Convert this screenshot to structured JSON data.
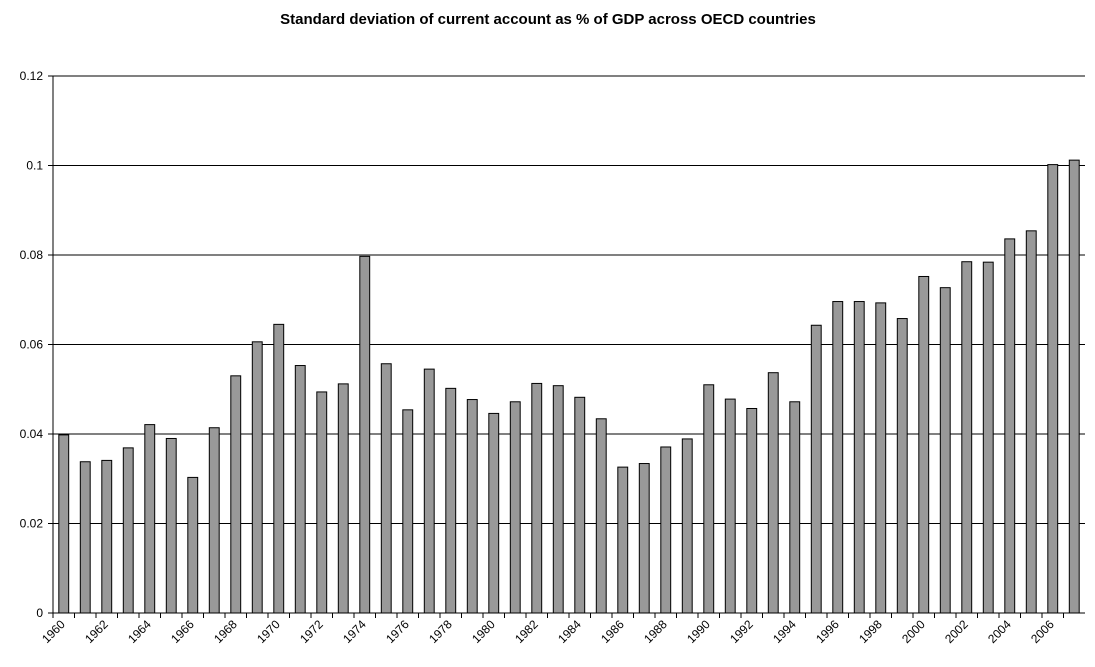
{
  "chart_data": {
    "type": "bar",
    "title": "Standard deviation of current account as % of GDP across OECD countries",
    "categories": [
      "1960",
      null,
      "1962",
      null,
      "1964",
      null,
      "1966",
      null,
      "1968",
      null,
      "1970",
      null,
      "1972",
      null,
      "1974",
      null,
      "1976",
      null,
      "1978",
      null,
      "1980",
      null,
      "1982",
      null,
      "1984",
      null,
      "1986",
      null,
      "1988",
      null,
      "1990",
      null,
      "1992",
      null,
      "1994",
      null,
      "1996",
      null,
      "1998",
      null,
      "2000",
      null,
      "2002",
      null,
      "2004",
      null,
      "2006",
      null
    ],
    "values": [
      0.0398,
      0.0338,
      0.0341,
      0.0369,
      0.0421,
      0.039,
      0.0303,
      0.0414,
      0.053,
      0.0606,
      0.0645,
      0.0553,
      0.0494,
      0.0512,
      0.0797,
      0.0557,
      0.0454,
      0.0545,
      0.0502,
      0.0477,
      0.0446,
      0.0472,
      0.0513,
      0.0508,
      0.0482,
      0.0434,
      0.0326,
      0.0334,
      0.0371,
      0.0389,
      0.051,
      0.0478,
      0.0457,
      0.0537,
      0.0472,
      0.0643,
      0.0696,
      0.0696,
      0.0693,
      0.0658,
      0.0752,
      0.0727,
      0.0785,
      0.0784,
      0.0836,
      0.0854,
      0.1002,
      0.1012
    ],
    "color": "#999999",
    "ylim": [
      0,
      0.12
    ],
    "yticks": [
      0,
      0.02,
      0.04,
      0.06,
      0.08,
      0.1,
      0.12
    ],
    "grid": true
  }
}
